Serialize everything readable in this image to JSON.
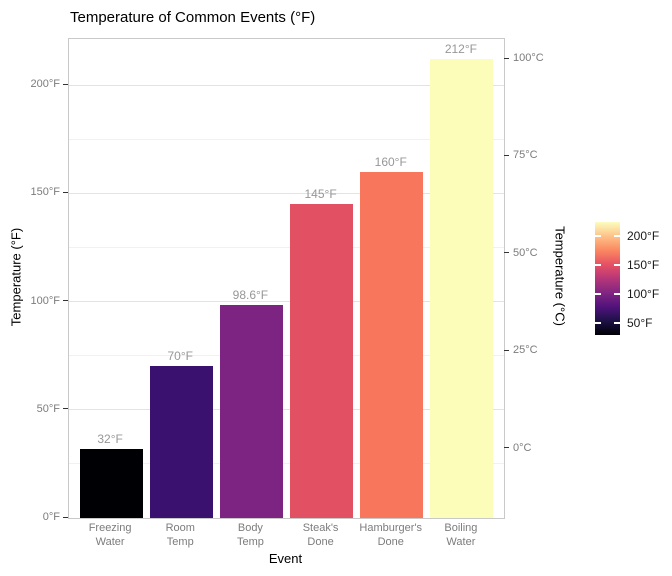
{
  "chart_data": {
    "type": "bar",
    "title": "Temperature of Common Events (°F)",
    "xlabel": "Event",
    "ylabel_left": "Temperature (°F)",
    "ylabel_right": "Temperature (°C)",
    "grid": "horizontal-only",
    "ylim_f": [
      0,
      221
    ],
    "categories": [
      {
        "label_lines": [
          "Freezing",
          "Water"
        ],
        "value_f": 32,
        "value_label": "32°F",
        "color": "#000004"
      },
      {
        "label_lines": [
          "Room",
          "Temp"
        ],
        "value_f": 70,
        "value_label": "70°F",
        "color": "#3B1170"
      },
      {
        "label_lines": [
          "Body",
          "Temp"
        ],
        "value_f": 98.6,
        "value_label": "98.6°F",
        "color": "#7D2482"
      },
      {
        "label_lines": [
          "Steak's",
          "Done"
        ],
        "value_f": 145,
        "value_label": "145°F",
        "color": "#E25063"
      },
      {
        "label_lines": [
          "Hamburger's",
          "Done"
        ],
        "value_f": 160,
        "value_label": "160°F",
        "color": "#F8765C"
      },
      {
        "label_lines": [
          "Boiling",
          "Water"
        ],
        "value_f": 212,
        "value_label": "212°F",
        "color": "#FBFDB8"
      }
    ],
    "y_axis_left": {
      "ticks": [
        {
          "value_f": 0,
          "label": "0°F"
        },
        {
          "value_f": 50,
          "label": "50°F"
        },
        {
          "value_f": 100,
          "label": "100°F"
        },
        {
          "value_f": 150,
          "label": "150°F"
        },
        {
          "value_f": 200,
          "label": "200°F"
        }
      ],
      "minor_ticks_f": [
        25,
        75,
        125,
        175
      ]
    },
    "y_axis_right": {
      "ticks": [
        {
          "value_c": 0,
          "label": "0°C"
        },
        {
          "value_c": 25,
          "label": "25°C"
        },
        {
          "value_c": 50,
          "label": "50°C"
        },
        {
          "value_c": 75,
          "label": "75°C"
        },
        {
          "value_c": 100,
          "label": "100°C"
        }
      ]
    },
    "legend": {
      "colormap": "magma",
      "gradient_stops_bottom_to_top": [
        "#000004",
        "#1D1147",
        "#51127C",
        "#822681",
        "#B63679",
        "#E65164",
        "#FB8861",
        "#FEC287",
        "#FCFDBF"
      ],
      "ticks": [
        {
          "label": "200°F",
          "frac_from_top": 0.122
        },
        {
          "label": "150°F",
          "frac_from_top": 0.379
        },
        {
          "label": "100°F",
          "frac_from_top": 0.636
        },
        {
          "label": "50°F",
          "frac_from_top": 0.892
        }
      ]
    }
  }
}
